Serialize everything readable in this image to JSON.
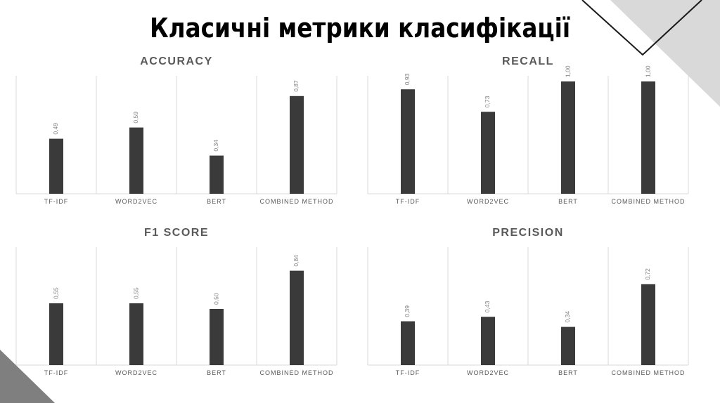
{
  "slide": {
    "title": "Класичні метрики класифікації"
  },
  "colors": {
    "bar": "#3a3a3a",
    "grid": "#d9d9d9",
    "decor_gray": "#d9d9d9",
    "decor_dark": "#808080"
  },
  "chart_data": [
    {
      "type": "bar",
      "title": "ACCURACY",
      "categories": [
        "TF-IDF",
        "WORD2VEC",
        "BERT",
        "COMBINED METHOD"
      ],
      "values": [
        0.49,
        0.59,
        0.34,
        0.87
      ],
      "value_labels": [
        "0,49",
        "0,59",
        "0,34",
        "0,87"
      ],
      "ylim": [
        0,
        1.0
      ],
      "grid": "vertical separators",
      "legend": "none"
    },
    {
      "type": "bar",
      "title": "RECALL",
      "categories": [
        "TF-IDF",
        "WORD2VEC",
        "BERT",
        "COMBINED METHOD"
      ],
      "values": [
        0.93,
        0.73,
        1.0,
        1.0
      ],
      "value_labels": [
        "0,93",
        "0,73",
        "1,00",
        "1,00"
      ],
      "ylim": [
        0,
        1.0
      ],
      "grid": "vertical separators",
      "legend": "none"
    },
    {
      "type": "bar",
      "title": "F1 SCORE",
      "categories": [
        "TF-IDF",
        "WORD2VEC",
        "BERT",
        "COMBINED METHOD"
      ],
      "values": [
        0.55,
        0.55,
        0.5,
        0.84
      ],
      "value_labels": [
        "0,55",
        "0,55",
        "0,50",
        "0,84"
      ],
      "ylim": [
        0,
        1.0
      ],
      "grid": "vertical separators",
      "legend": "none"
    },
    {
      "type": "bar",
      "title": "PRECISION",
      "categories": [
        "TF-IDF",
        "WORD2VEC",
        "BERT",
        "COMBINED METHOD"
      ],
      "values": [
        0.39,
        0.43,
        0.34,
        0.72
      ],
      "value_labels": [
        "0,39",
        "0,43",
        "0,34",
        "0,72"
      ],
      "ylim": [
        0,
        1.0
      ],
      "grid": "vertical separators",
      "legend": "none"
    }
  ]
}
